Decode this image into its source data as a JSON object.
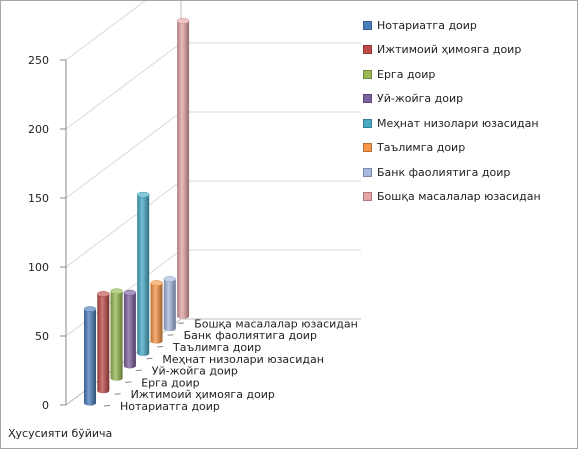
{
  "chart_data": {
    "type": "bar",
    "subtype": "3d-cylinder",
    "x_category": "Ҳусусияти бўйича",
    "series": [
      {
        "name": "Нотариатга доир",
        "value": 68,
        "color": "#4a7ebb"
      },
      {
        "name": "Ижтимоий ҳимояга доир",
        "value": 70,
        "color": "#be4b48"
      },
      {
        "name": "Ерга доир",
        "value": 63,
        "color": "#98b954"
      },
      {
        "name": "Уй-жойга доир",
        "value": 53,
        "color": "#7d60a0"
      },
      {
        "name": "Меҳнат низолари юзасидан",
        "value": 115,
        "color": "#46aac5"
      },
      {
        "name": "Таълимга доир",
        "value": 42,
        "color": "#f79646"
      },
      {
        "name": "Банк фаолиятига доир",
        "value": 36,
        "color": "#a5b8df"
      },
      {
        "name": "Бошқа масалалар юзасидан",
        "value": 214,
        "color": "#e6a5a5"
      }
    ],
    "y_ticks": [
      "0",
      "50",
      "100",
      "150",
      "200",
      "250"
    ],
    "ylim": [
      0,
      250
    ],
    "grid": true,
    "legend_position": "right"
  }
}
